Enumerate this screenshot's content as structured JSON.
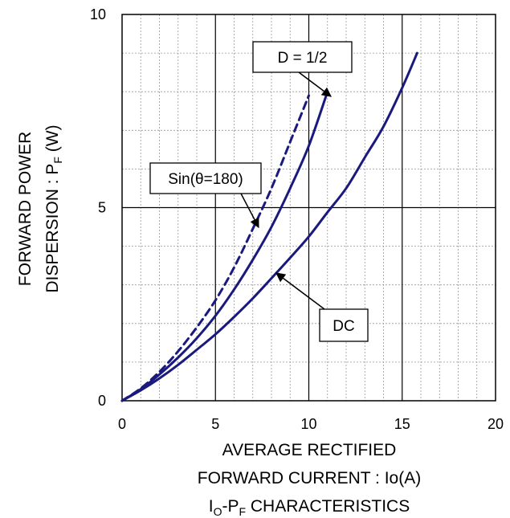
{
  "chart_data": {
    "type": "line",
    "title": "",
    "caption": "Io-PF CHARACTERISTICS",
    "caption_parts": {
      "main_1": "I",
      "sub_1": "O",
      "mid": "-P",
      "sub_2": "F",
      "tail": " CHARACTERISTICS"
    },
    "xlabel_line1": "AVERAGE RECTIFIED",
    "xlabel_line2": "FORWARD CURRENT : Io(A)",
    "ylabel_line1": "FORWARD POWER",
    "ylabel_line2_main": "DISPERSION : P",
    "ylabel_line2_sub": "F",
    "ylabel_line2_tail": " (W)",
    "xlim": [
      0,
      20
    ],
    "ylim": [
      0,
      10
    ],
    "x_ticks": [
      "0",
      "5",
      "10",
      "15",
      "20"
    ],
    "y_ticks": [
      "0",
      "5",
      "10"
    ],
    "grid": true,
    "series": [
      {
        "name": "D = 1/2",
        "style": "solid",
        "color": "#1a1a7e",
        "points": [
          [
            0,
            0
          ],
          [
            1,
            0.3
          ],
          [
            2,
            0.68
          ],
          [
            3,
            1.12
          ],
          [
            4,
            1.62
          ],
          [
            5,
            2.2
          ],
          [
            6,
            2.88
          ],
          [
            7,
            3.65
          ],
          [
            8,
            4.5
          ],
          [
            9,
            5.5
          ],
          [
            10,
            6.6
          ],
          [
            11,
            8.0
          ]
        ]
      },
      {
        "name": "Sin(θ=180)",
        "style": "dashed",
        "color": "#1a1a7e",
        "points": [
          [
            0,
            0
          ],
          [
            1,
            0.32
          ],
          [
            2,
            0.75
          ],
          [
            3,
            1.28
          ],
          [
            4,
            1.9
          ],
          [
            5,
            2.6
          ],
          [
            6,
            3.45
          ],
          [
            7,
            4.45
          ],
          [
            8,
            5.5
          ],
          [
            9,
            6.7
          ],
          [
            10,
            7.9
          ]
        ]
      },
      {
        "name": "DC",
        "style": "solid",
        "color": "#1a1a7e",
        "points": [
          [
            0,
            0
          ],
          [
            1,
            0.27
          ],
          [
            2,
            0.58
          ],
          [
            3,
            0.93
          ],
          [
            4,
            1.32
          ],
          [
            5,
            1.72
          ],
          [
            6,
            2.17
          ],
          [
            7,
            2.65
          ],
          [
            8,
            3.17
          ],
          [
            9,
            3.7
          ],
          [
            10,
            4.25
          ],
          [
            11,
            4.88
          ],
          [
            12,
            5.5
          ],
          [
            13,
            6.3
          ],
          [
            14,
            7.1
          ],
          [
            15,
            8.1
          ],
          [
            15.8,
            9.0
          ]
        ]
      }
    ],
    "annotations": [
      {
        "text": "D = 1/2"
      },
      {
        "text": "Sin(θ=180)"
      },
      {
        "text": "DC"
      }
    ]
  }
}
